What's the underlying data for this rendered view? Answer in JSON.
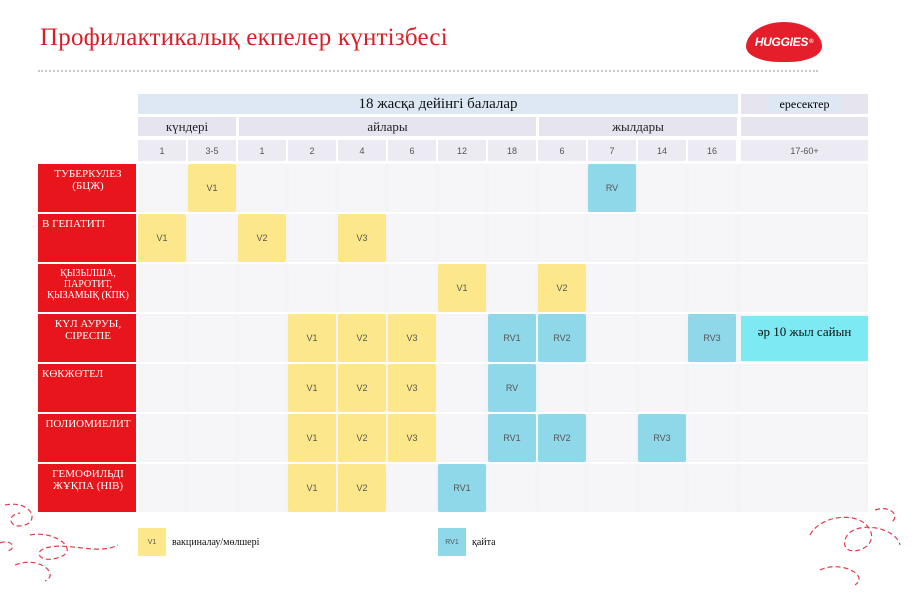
{
  "page_title": "Профилактикалық екпелер күнтізбесі",
  "logo_text": "HUGGIES",
  "logo_tm": "®",
  "header": {
    "children": "18 жасқа дейінгі балалар",
    "adults": "ересектер",
    "groups": {
      "days": "күндері",
      "months": "айлары",
      "years": "жылдары"
    },
    "ticks": [
      "1",
      "3-5",
      "1",
      "2",
      "4",
      "6",
      "12",
      "18",
      "6",
      "7",
      "14",
      "16",
      "17-60+"
    ]
  },
  "diseases": [
    {
      "name": "ТУБЕРКУЛЕЗ (БЦЖ)"
    },
    {
      "name": "В ГЕПАТИТІ"
    },
    {
      "name": "ҚЫЗЫЛША, ПАРОТИТ, ҚЫЗАМЫҚ (КПК)"
    },
    {
      "name": "КҮЛ АУРУЫ, СІРЕСПЕ"
    },
    {
      "name": "КӨКЖӨТЕЛ"
    },
    {
      "name": "ПОЛИОМИЕЛИТ"
    },
    {
      "name": "ГЕМОФИЛЬДІ ЖҰҚПА (HIB)"
    }
  ],
  "schedule": [
    [
      {
        "col": 1,
        "label": "V1",
        "kind": "vaccination"
      },
      {
        "col": 9,
        "label": "RV",
        "kind": "revaccination"
      }
    ],
    [
      {
        "col": 0,
        "label": "V1",
        "kind": "vaccination"
      },
      {
        "col": 2,
        "label": "V2",
        "kind": "vaccination"
      },
      {
        "col": 4,
        "label": "V3",
        "kind": "vaccination"
      }
    ],
    [
      {
        "col": 6,
        "label": "V1",
        "kind": "vaccination"
      },
      {
        "col": 8,
        "label": "V2",
        "kind": "vaccination"
      }
    ],
    [
      {
        "col": 3,
        "label": "V1",
        "kind": "vaccination"
      },
      {
        "col": 4,
        "label": "V2",
        "kind": "vaccination"
      },
      {
        "col": 5,
        "label": "V3",
        "kind": "vaccination"
      },
      {
        "col": 7,
        "label": "RV1",
        "kind": "revaccination"
      },
      {
        "col": 8,
        "label": "RV2",
        "kind": "revaccination"
      },
      {
        "col": 11,
        "label": "RV3",
        "kind": "revaccination"
      }
    ],
    [
      {
        "col": 3,
        "label": "V1",
        "kind": "vaccination"
      },
      {
        "col": 4,
        "label": "V2",
        "kind": "vaccination"
      },
      {
        "col": 5,
        "label": "V3",
        "kind": "vaccination"
      },
      {
        "col": 7,
        "label": "RV",
        "kind": "revaccination"
      }
    ],
    [
      {
        "col": 3,
        "label": "V1",
        "kind": "vaccination"
      },
      {
        "col": 4,
        "label": "V2",
        "kind": "vaccination"
      },
      {
        "col": 5,
        "label": "V3",
        "kind": "vaccination"
      },
      {
        "col": 7,
        "label": "RV1",
        "kind": "revaccination"
      },
      {
        "col": 8,
        "label": "RV2",
        "kind": "revaccination"
      },
      {
        "col": 10,
        "label": "RV3",
        "kind": "revaccination"
      }
    ],
    [
      {
        "col": 3,
        "label": "V1",
        "kind": "vaccination"
      },
      {
        "col": 4,
        "label": "V2",
        "kind": "vaccination"
      },
      {
        "col": 6,
        "label": "RV1",
        "kind": "revaccination"
      }
    ]
  ],
  "adult_note": "әр 10 жыл сайын",
  "legend": {
    "vaccination_sample": "V1",
    "vaccination_text": "вакциналау/мөлшері",
    "revaccination_sample": "RV1",
    "revaccination_text": "қайта"
  },
  "colors": {
    "brand_red": "#e8151c",
    "vaccination_yellow": "#fce88a",
    "revaccination_blue": "#8ed8ea",
    "adult_cyan": "#7de9f3",
    "header_blue": "#dde8f4"
  }
}
